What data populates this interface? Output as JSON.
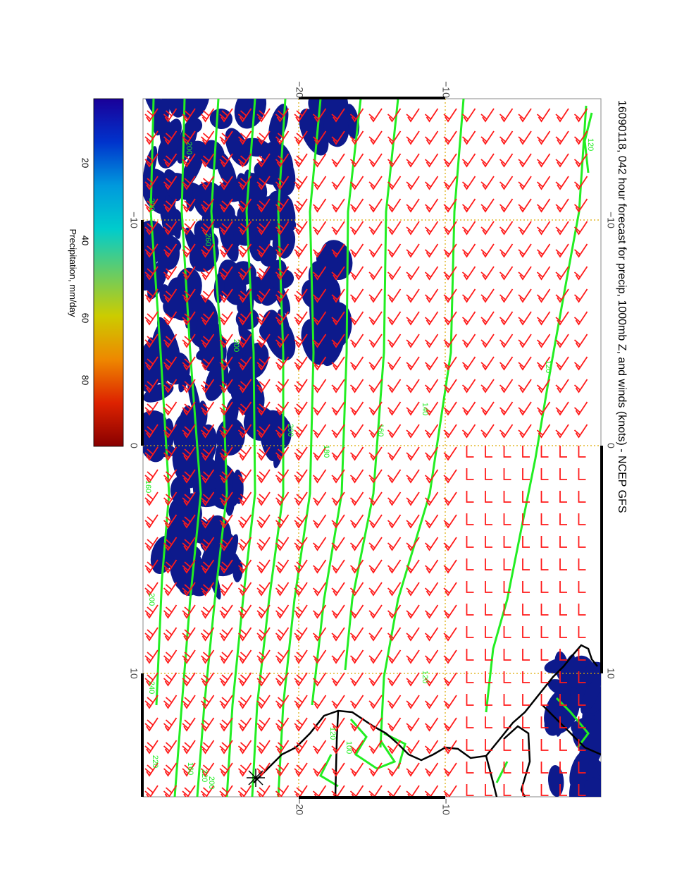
{
  "title": "16090118, 042 hour forecast for precip, 1000mb Z, and winds (knots) - NCEP GFS",
  "colorbar": {
    "label": "Precipitation, mm/day",
    "ticks": [
      "20",
      "40",
      "60",
      "80"
    ],
    "colors": [
      "#1a0099",
      "#0033cc",
      "#0099dd",
      "#00cccc",
      "#66cc66",
      "#cccc00",
      "#ee8800",
      "#dd2200",
      "#880000"
    ]
  },
  "axes": {
    "top_ticks": [
      "−20",
      "−10"
    ],
    "bottom_ticks": [
      "−20",
      "−10"
    ],
    "left_ticks": [
      "−10",
      "0",
      "10"
    ],
    "right_ticks": [
      "−10",
      "0",
      "10"
    ]
  },
  "contour_labels": [
    "120",
    "200",
    "200",
    "260",
    "200",
    "200",
    "180",
    "160",
    "140",
    "120",
    "160",
    "200",
    "240",
    "160",
    "220",
    "200",
    "220",
    "100",
    "120",
    "120"
  ],
  "colors": {
    "precip_fill": "#0d1a8c",
    "contour": "#22ee22",
    "barb": "#ff1a1a",
    "grid": "#ddaa00",
    "coast": "#000000"
  }
}
